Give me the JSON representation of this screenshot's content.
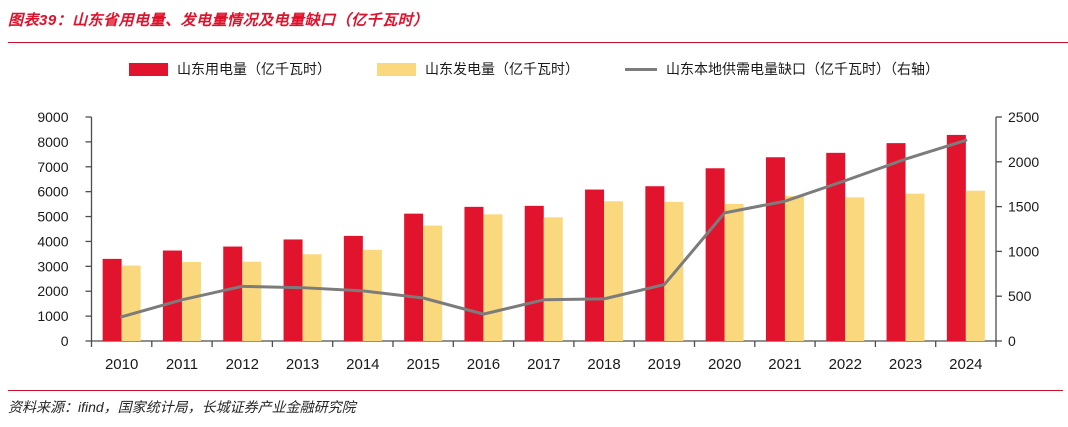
{
  "header": {
    "title": "图表39：山东省用电量、发电量情况及电量缺口（亿千瓦时）"
  },
  "legend": {
    "items": [
      {
        "label": "山东用电量（亿千瓦时）",
        "shape": "bar",
        "color": "#E2132C"
      },
      {
        "label": "山东发电量（亿千瓦时）",
        "shape": "bar",
        "color": "#FAD87D"
      },
      {
        "label": "山东本地供需电量缺口（亿千瓦时）（右轴）",
        "shape": "line",
        "color": "#7C7C7C"
      }
    ]
  },
  "footer": {
    "source": "资料来源：ifind，国家统计局，长城证券产业金融研究院"
  },
  "colors": {
    "accent_red": "#E0112B",
    "rule_red": "#C8102E",
    "bar_consumption": "#E2132C",
    "bar_generation": "#FAD87D",
    "gap_line": "#7C7C7C",
    "axis": "#4d4d4d",
    "tick_text": "#1a1a1a"
  },
  "chart_data": {
    "type": "bar",
    "subtype": "grouped-bars-with-line",
    "title": "山东省用电量、发电量情况及电量缺口（亿千瓦时）",
    "categories": [
      2010,
      2011,
      2012,
      2013,
      2014,
      2015,
      2016,
      2017,
      2018,
      2019,
      2020,
      2021,
      2022,
      2023,
      2024
    ],
    "series": [
      {
        "name": "山东用电量（亿千瓦时）",
        "type": "bar",
        "axis": "left",
        "color": "#E2132C",
        "values": [
          3300,
          3635,
          3795,
          4080,
          4223,
          5117,
          5390,
          5430,
          6085,
          6219,
          6940,
          7383,
          7560,
          7950,
          8280
        ]
      },
      {
        "name": "山东发电量（亿千瓦时）",
        "type": "bar",
        "axis": "left",
        "color": "#FAD87D",
        "values": [
          3030,
          3175,
          3185,
          3485,
          3663,
          4637,
          5090,
          4970,
          5615,
          5589,
          5510,
          5823,
          5770,
          5920,
          6040
        ]
      },
      {
        "name": "山东本地供需电量缺口（亿千瓦时）（右轴）",
        "type": "line",
        "axis": "right",
        "color": "#7C7C7C",
        "values": [
          270,
          460,
          610,
          595,
          560,
          480,
          300,
          460,
          470,
          630,
          1430,
          1560,
          1790,
          2030,
          2240
        ]
      }
    ],
    "left_axis": {
      "min": 0,
      "max": 9000,
      "step": 1000,
      "ticks": [
        0,
        1000,
        2000,
        3000,
        4000,
        5000,
        6000,
        7000,
        8000,
        9000
      ]
    },
    "right_axis": {
      "min": 0,
      "max": 2500,
      "step": 500,
      "ticks": [
        0,
        500,
        1000,
        1500,
        2000,
        2500
      ]
    },
    "grid": false,
    "legend_position": "top"
  }
}
